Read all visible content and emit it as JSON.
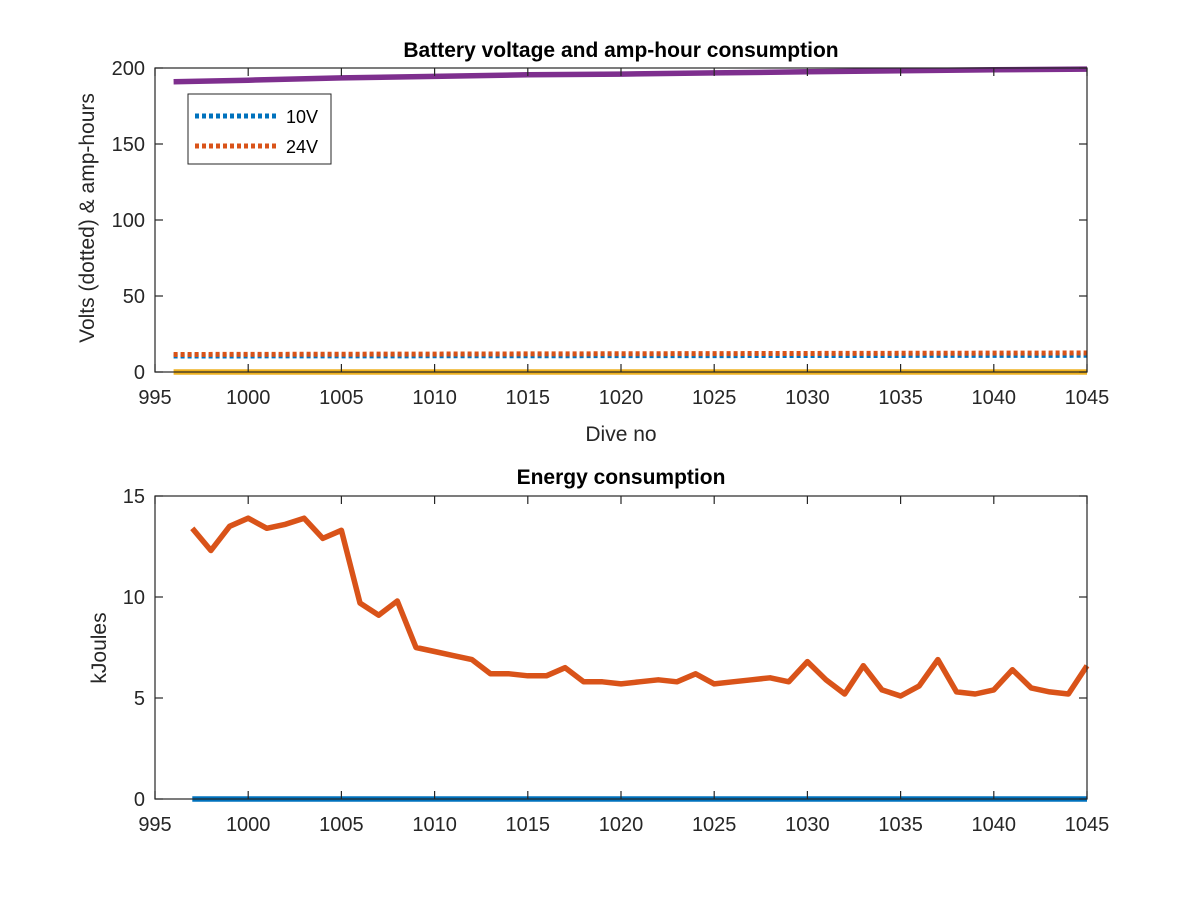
{
  "chart_data": [
    {
      "type": "line",
      "title": "Battery voltage and amp-hour consumption",
      "xlabel": "Dive no",
      "ylabel": "Volts (dotted) & amp-hours",
      "xlim": [
        995,
        1045
      ],
      "ylim": [
        0,
        200
      ],
      "xticks": [
        "995",
        "1000",
        "1005",
        "1010",
        "1015",
        "1020",
        "1025",
        "1030",
        "1035",
        "1040",
        "1045"
      ],
      "yticks": [
        "0",
        "50",
        "100",
        "150",
        "200"
      ],
      "grid": false,
      "legend_position": "top-left",
      "series": [
        {
          "name": "10V",
          "style": "dotted",
          "color": "#0072BD",
          "legend": true,
          "x": [
            996,
            1045
          ],
          "values": [
            10.5,
            11.0
          ]
        },
        {
          "name": "24V",
          "style": "dotted",
          "color": "#D95319",
          "legend": true,
          "x": [
            996,
            1045
          ],
          "values": [
            11.5,
            12.5
          ]
        },
        {
          "style": "solid",
          "color": "#EDB120",
          "legend": false,
          "x": [
            996,
            1045
          ],
          "values": [
            0,
            0
          ]
        },
        {
          "style": "solid",
          "color": "#7E2F8E",
          "legend": false,
          "x": [
            996,
            1000,
            1005,
            1010,
            1015,
            1020,
            1025,
            1030,
            1035,
            1040,
            1045
          ],
          "values": [
            191,
            192,
            193.5,
            194.5,
            195.5,
            196,
            196.8,
            197.5,
            198.2,
            198.8,
            199.3
          ]
        }
      ]
    },
    {
      "type": "line",
      "title": "Energy consumption",
      "xlabel": "",
      "ylabel": "kJoules",
      "xlim": [
        995,
        1045
      ],
      "ylim": [
        0,
        15
      ],
      "xticks": [
        "995",
        "1000",
        "1005",
        "1010",
        "1015",
        "1020",
        "1025",
        "1030",
        "1035",
        "1040",
        "1045"
      ],
      "yticks": [
        "0",
        "5",
        "10",
        "15"
      ],
      "grid": false,
      "series": [
        {
          "style": "solid",
          "color": "#D95319",
          "x": [
            997,
            998,
            999,
            1000,
            1001,
            1002,
            1003,
            1004,
            1005,
            1006,
            1007,
            1008,
            1009,
            1010,
            1011,
            1012,
            1013,
            1014,
            1015,
            1016,
            1017,
            1018,
            1019,
            1020,
            1021,
            1022,
            1023,
            1024,
            1025,
            1026,
            1027,
            1028,
            1029,
            1030,
            1031,
            1032,
            1033,
            1034,
            1035,
            1036,
            1037,
            1038,
            1039,
            1040,
            1041,
            1042,
            1043,
            1044,
            1045
          ],
          "values": [
            13.4,
            12.3,
            13.5,
            13.9,
            13.4,
            13.6,
            13.9,
            12.9,
            13.3,
            9.7,
            9.1,
            9.8,
            7.5,
            7.3,
            7.1,
            6.9,
            6.2,
            6.2,
            6.1,
            6.1,
            6.5,
            5.8,
            5.8,
            5.7,
            5.8,
            5.9,
            5.8,
            6.2,
            5.7,
            5.8,
            5.9,
            6.0,
            5.8,
            6.8,
            5.9,
            5.2,
            6.6,
            5.4,
            5.1,
            5.6,
            6.9,
            5.3,
            5.2,
            5.4,
            6.4,
            5.5,
            5.3,
            5.2,
            6.6
          ]
        },
        {
          "style": "solid",
          "color": "#0072BD",
          "x": [
            997,
            1045
          ],
          "values": [
            0,
            0
          ]
        }
      ]
    }
  ]
}
